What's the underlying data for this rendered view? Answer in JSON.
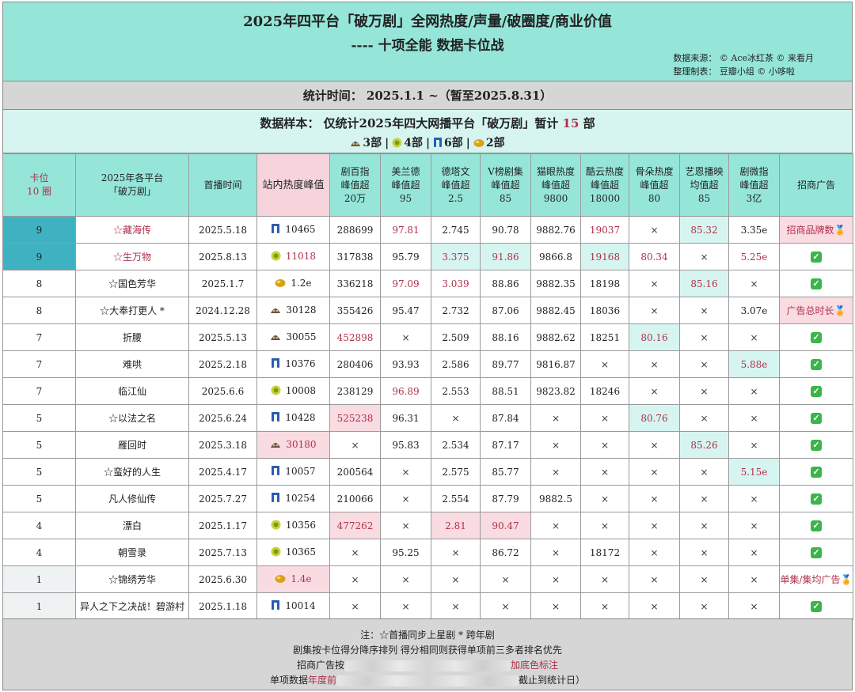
{
  "header": {
    "title_line1": "2025年四平台「破万剧」全网热度/声量/破圈度/商业价值",
    "title_line2": "----  十项全能 数据卡位战",
    "source_line": "数据来源： © Ace冰红茶  © 来看月",
    "maker_line": "整理制表： 豆瓣小组  ©  小哆啦"
  },
  "period": "统计时间： 2025.1.1 ~（暂至2025.8.31）",
  "sample": {
    "prefix": "数据样本：  仅统计2025年四大网播平台「破万剧」暂计",
    "count": "15",
    "suffix": "部",
    "groups": [
      {
        "icon": "mango-tv-icon",
        "label": "3部"
      },
      {
        "icon": "iqiyi-icon",
        "label": "4部"
      },
      {
        "icon": "youku-icon",
        "label": "6部"
      },
      {
        "icon": "tencent-video-icon",
        "label": "2部"
      }
    ]
  },
  "columns": {
    "rank": [
      "卡位",
      "10 圈"
    ],
    "drama": [
      "2025年各平台",
      "「破万剧」"
    ],
    "premiere": "首播时间",
    "site_heat": "站内热度峰值",
    "c1": [
      "剧百指",
      "峰值超",
      "20万"
    ],
    "c2": [
      "美兰德",
      "峰值超",
      "95"
    ],
    "c3": [
      "德塔文",
      "峰值超",
      "2.5"
    ],
    "c4": [
      "V榜剧集",
      "峰值超",
      "85"
    ],
    "c5": [
      "猫眼热度",
      "峰值超",
      "9800"
    ],
    "c6": [
      "酷云热度",
      "峰值超",
      "18000"
    ],
    "c7": [
      "骨朵热度",
      "峰值超",
      "80"
    ],
    "c8": [
      "艺恩播映",
      "均值超",
      "85"
    ],
    "c9": [
      "剧微指",
      "峰值超",
      "3亿"
    ],
    "c10": "招商广告"
  },
  "rows": [
    {
      "rank": "9",
      "title": "☆藏海传",
      "date": "2025.5.18",
      "icon": "youku-icon",
      "heat": "10465",
      "c1": "288699",
      "c2": "97.81",
      "c3": "2.745",
      "c4": "90.78",
      "c5": "9882.76",
      "c6": "19037",
      "c7": "×",
      "c8": "85.32",
      "c9": "3.35e",
      "ad": "招商品牌数🏅"
    },
    {
      "rank": "9",
      "title": "☆生万物",
      "date": "2025.8.13",
      "icon": "iqiyi-icon",
      "heat": "11018",
      "c1": "317838",
      "c2": "95.79",
      "c3": "3.375",
      "c4": "91.86",
      "c5": "9866.8",
      "c6": "19168",
      "c7": "80.34",
      "c8": "×",
      "c9": "5.25e",
      "ad": "✓"
    },
    {
      "rank": "8",
      "title": "☆国色芳华",
      "date": "2025.1.7",
      "icon": "tencent-video-icon",
      "heat": "1.2e",
      "c1": "336218",
      "c2": "97.09",
      "c3": "3.039",
      "c4": "88.86",
      "c5": "9882.35",
      "c6": "18198",
      "c7": "×",
      "c8": "85.16",
      "c9": "×",
      "ad": "✓"
    },
    {
      "rank": "8",
      "title": "☆大奉打更人 *",
      "date": "2024.12.28",
      "icon": "mango-tv-icon",
      "heat": "30128",
      "c1": "355426",
      "c2": "95.47",
      "c3": "2.732",
      "c4": "87.06",
      "c5": "9882.45",
      "c6": "18036",
      "c7": "×",
      "c8": "×",
      "c9": "3.07e",
      "ad": "广告总时长🏅"
    },
    {
      "rank": "7",
      "title": "折腰",
      "date": "2025.5.13",
      "icon": "mango-tv-icon",
      "heat": "30055",
      "c1": "452898",
      "c2": "×",
      "c3": "2.509",
      "c4": "88.16",
      "c5": "9882.62",
      "c6": "18251",
      "c7": "80.16",
      "c8": "×",
      "c9": "×",
      "ad": "✓"
    },
    {
      "rank": "7",
      "title": "难哄",
      "date": "2025.2.18",
      "icon": "youku-icon",
      "heat": "10376",
      "c1": "280406",
      "c2": "93.93",
      "c3": "2.586",
      "c4": "89.77",
      "c5": "9816.87",
      "c6": "×",
      "c7": "×",
      "c8": "×",
      "c9": "5.88e",
      "ad": "✓"
    },
    {
      "rank": "7",
      "title": "临江仙",
      "date": "2025.6.6",
      "icon": "iqiyi-icon",
      "heat": "10008",
      "c1": "238129",
      "c2": "96.89",
      "c3": "2.553",
      "c4": "88.51",
      "c5": "9823.82",
      "c6": "18246",
      "c7": "×",
      "c8": "×",
      "c9": "×",
      "ad": "✓"
    },
    {
      "rank": "5",
      "title": "☆以法之名",
      "date": "2025.6.24",
      "icon": "youku-icon",
      "heat": "10428",
      "c1": "525238",
      "c2": "96.31",
      "c3": "×",
      "c4": "87.84",
      "c5": "×",
      "c6": "×",
      "c7": "80.76",
      "c8": "×",
      "c9": "×",
      "ad": "✓"
    },
    {
      "rank": "5",
      "title": "雁回时",
      "date": "2025.3.18",
      "icon": "mango-tv-icon",
      "heat": "30180",
      "c1": "×",
      "c2": "95.83",
      "c3": "2.534",
      "c4": "87.17",
      "c5": "×",
      "c6": "×",
      "c7": "×",
      "c8": "85.26",
      "c9": "×",
      "ad": "✓"
    },
    {
      "rank": "5",
      "title": "☆蛮好的人生",
      "date": "2025.4.17",
      "icon": "youku-icon",
      "heat": "10057",
      "c1": "200564",
      "c2": "×",
      "c3": "2.575",
      "c4": "85.77",
      "c5": "×",
      "c6": "×",
      "c7": "×",
      "c8": "×",
      "c9": "5.15e",
      "ad": "✓"
    },
    {
      "rank": "5",
      "title": "凡人修仙传",
      "date": "2025.7.27",
      "icon": "youku-icon",
      "heat": "10254",
      "c1": "210066",
      "c2": "×",
      "c3": "2.554",
      "c4": "87.79",
      "c5": "9882.5",
      "c6": "×",
      "c7": "×",
      "c8": "×",
      "c9": "×",
      "ad": "✓"
    },
    {
      "rank": "4",
      "title": "漂白",
      "date": "2025.1.17",
      "icon": "iqiyi-icon",
      "heat": "10356",
      "c1": "477262",
      "c2": "×",
      "c3": "2.81",
      "c4": "90.47",
      "c5": "×",
      "c6": "×",
      "c7": "×",
      "c8": "×",
      "c9": "×",
      "ad": "✓"
    },
    {
      "rank": "4",
      "title": "朝雪录",
      "date": "2025.7.13",
      "icon": "iqiyi-icon",
      "heat": "10365",
      "c1": "×",
      "c2": "95.25",
      "c3": "×",
      "c4": "86.72",
      "c5": "×",
      "c6": "18172",
      "c7": "×",
      "c8": "×",
      "c9": "×",
      "ad": "✓"
    },
    {
      "rank": "1",
      "title": "☆锦绣芳华",
      "date": "2025.6.30",
      "icon": "tencent-video-icon",
      "heat": "1.4e",
      "c1": "×",
      "c2": "×",
      "c3": "×",
      "c4": "×",
      "c5": "×",
      "c6": "×",
      "c7": "×",
      "c8": "×",
      "c9": "×",
      "ad": "单集/集均广告🏅"
    },
    {
      "rank": "1",
      "title": "异人之下之决战！碧游村",
      "date": "2025.1.18",
      "icon": "youku-icon",
      "heat": "10014",
      "c1": "×",
      "c2": "×",
      "c3": "×",
      "c4": "×",
      "c5": "×",
      "c6": "×",
      "c7": "×",
      "c8": "×",
      "c9": "×",
      "ad": "✓"
    }
  ],
  "notes": {
    "n1": "注：☆首播同步上星剧  * 跨年剧",
    "n2": "剧集按卡位得分降序排列 得分相同则获得单项前三多者排名优先",
    "n3_prefix": "招商广告按",
    "n3_red": "加底色标注",
    "n4_prefix": "单项数据",
    "n4_red": "年度前",
    "n4_suffix": "截止到统计日）"
  },
  "colors": {
    "header_bg": "#95e6d9",
    "light_cyan": "#d6f5f1",
    "pink": "#f9dbe2",
    "rank_highlight": "#3fb2c1",
    "red_text": "#b0304a",
    "gray_bg": "#d6d6d6"
  }
}
